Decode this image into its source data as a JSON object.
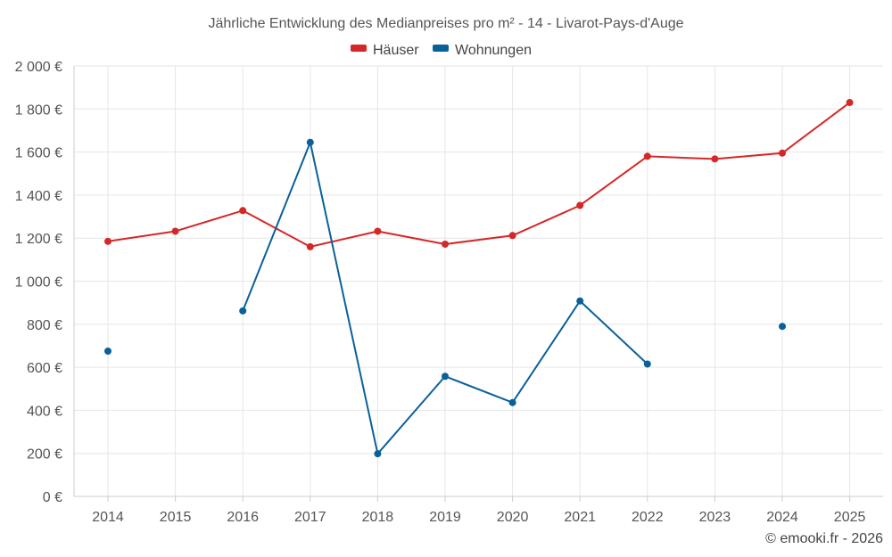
{
  "chart_data": {
    "type": "line",
    "title": "Jährliche Entwicklung des Medianpreises pro m² - 14 - Livarot-Pays-d'Auge",
    "xlabel": "",
    "ylabel": "",
    "x": [
      2014,
      2015,
      2016,
      2017,
      2018,
      2019,
      2020,
      2021,
      2022,
      2023,
      2024,
      2025
    ],
    "ylim": [
      0,
      2000
    ],
    "y_ticks": [
      0,
      200,
      400,
      600,
      800,
      1000,
      1200,
      1400,
      1600,
      1800,
      2000
    ],
    "y_tick_labels": [
      "0 €",
      "200 €",
      "400 €",
      "600 €",
      "800 €",
      "1 000 €",
      "1 200 €",
      "1 400 €",
      "1 600 €",
      "1 800 €",
      "2 000 €"
    ],
    "grid": true,
    "legend_position": "top-center",
    "series": [
      {
        "name": "Häuser",
        "color": "#d62728",
        "values": [
          1185,
          1232,
          1328,
          1160,
          1232,
          1172,
          1212,
          1352,
          1580,
          1568,
          1595,
          1830
        ]
      },
      {
        "name": "Wohnungen",
        "color": "#0a6199",
        "values": [
          675,
          null,
          862,
          1645,
          198,
          558,
          436,
          908,
          615,
          null,
          790,
          null
        ]
      }
    ]
  },
  "credit": "© emooki.fr - 2026"
}
